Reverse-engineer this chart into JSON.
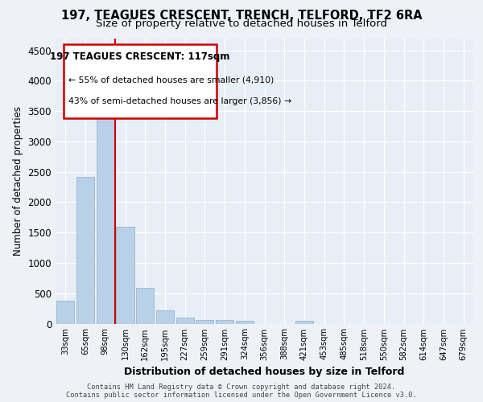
{
  "title1": "197, TEAGUES CRESCENT, TRENCH, TELFORD, TF2 6RA",
  "title2": "Size of property relative to detached houses in Telford",
  "xlabel": "Distribution of detached houses by size in Telford",
  "ylabel": "Number of detached properties",
  "annotation_line1": "197 TEAGUES CRESCENT: 117sqm",
  "annotation_line2": "← 55% of detached houses are smaller (4,910)",
  "annotation_line3": "43% of semi-detached houses are larger (3,856) →",
  "footer1": "Contains HM Land Registry data © Crown copyright and database right 2024.",
  "footer2": "Contains public sector information licensed under the Open Government Licence v3.0.",
  "categories": [
    "33sqm",
    "65sqm",
    "98sqm",
    "130sqm",
    "162sqm",
    "195sqm",
    "227sqm",
    "259sqm",
    "291sqm",
    "324sqm",
    "356sqm",
    "388sqm",
    "421sqm",
    "453sqm",
    "485sqm",
    "518sqm",
    "550sqm",
    "582sqm",
    "614sqm",
    "647sqm",
    "679sqm"
  ],
  "values": [
    380,
    2410,
    3620,
    1590,
    590,
    220,
    105,
    60,
    55,
    40,
    0,
    0,
    50,
    0,
    0,
    0,
    0,
    0,
    0,
    0,
    0
  ],
  "bar_color": "#b8d0e8",
  "bar_edge_color": "#8ab0cc",
  "vline_color": "#cc0000",
  "annotation_box_color": "#cc0000",
  "ylim": [
    0,
    4700
  ],
  "yticks": [
    0,
    500,
    1000,
    1500,
    2000,
    2500,
    3000,
    3500,
    4000,
    4500
  ],
  "bg_color": "#eef2f8",
  "plot_bg": "#e8eef6",
  "grid_color": "#ffffff",
  "title_fontsize": 10.5,
  "subtitle_fontsize": 9.5
}
